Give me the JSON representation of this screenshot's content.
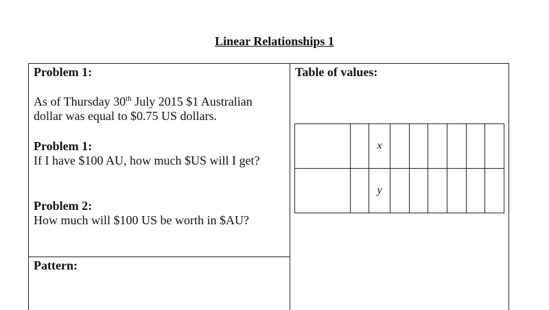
{
  "title": "Linear Relationships 1",
  "left": {
    "heading": "Problem 1:",
    "intro_a": "As of Thursday 30",
    "intro_sup": "th",
    "intro_b": " July 2015 $1 Australian",
    "intro_c": "dollar was equal to $0.75 US dollars.",
    "p1_heading": "Problem 1:",
    "p1_text": "If I have $100 AU, how much $US will I get?",
    "p2_heading": "Problem 2:",
    "p2_text": "How much will $100 US be worth in $AU?",
    "pattern_heading": "Pattern:"
  },
  "right": {
    "heading": "Table of values:",
    "table": {
      "row_labels": [
        "x",
        "y"
      ]
    }
  }
}
